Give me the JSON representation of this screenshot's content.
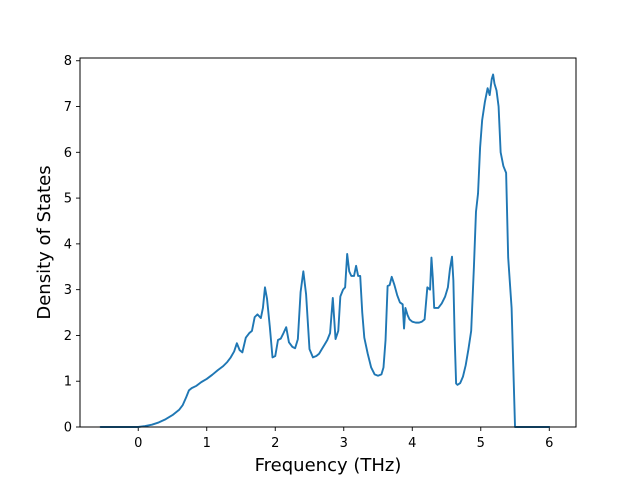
{
  "chart_data": {
    "type": "line",
    "title": "",
    "xlabel": "Frequency (THz)",
    "ylabel": "Density of States",
    "xlim": [
      -0.85,
      6.39
    ],
    "ylim": [
      0,
      8.06
    ],
    "grid": false,
    "legend": "none",
    "xticks": [
      0,
      1,
      2,
      3,
      4,
      5,
      6
    ],
    "yticks": [
      0,
      1,
      2,
      3,
      4,
      5,
      6,
      7,
      8
    ],
    "line_color": "#1f77b4",
    "series": [
      {
        "x": [
          -0.55,
          -0.4,
          -0.2,
          0.0,
          0.1,
          0.2,
          0.3,
          0.4,
          0.5,
          0.6,
          0.65,
          0.7,
          0.74,
          0.78,
          0.85,
          0.92,
          1.0,
          1.08,
          1.16,
          1.24,
          1.3,
          1.35,
          1.4,
          1.44,
          1.48,
          1.52,
          1.57,
          1.62,
          1.66,
          1.7,
          1.74,
          1.79,
          1.82,
          1.85,
          1.88,
          1.92,
          1.96,
          2.0,
          2.04,
          2.08,
          2.12,
          2.16,
          2.2,
          2.25,
          2.29,
          2.33,
          2.37,
          2.41,
          2.45,
          2.5,
          2.55,
          2.6,
          2.64,
          2.68,
          2.72,
          2.76,
          2.8,
          2.84,
          2.88,
          2.92,
          2.95,
          2.99,
          3.02,
          3.05,
          3.08,
          3.11,
          3.15,
          3.18,
          3.21,
          3.24,
          3.27,
          3.3,
          3.35,
          3.4,
          3.45,
          3.5,
          3.55,
          3.58,
          3.61,
          3.64,
          3.67,
          3.7,
          3.74,
          3.78,
          3.82,
          3.86,
          3.88,
          3.9,
          3.93,
          3.96,
          4.0,
          4.05,
          4.1,
          4.14,
          4.18,
          4.22,
          4.26,
          4.28,
          4.3,
          4.32,
          4.35,
          4.38,
          4.43,
          4.48,
          4.52,
          4.55,
          4.58,
          4.6,
          4.62,
          4.64,
          4.66,
          4.7,
          4.74,
          4.78,
          4.82,
          4.86,
          4.9,
          4.93,
          4.96,
          4.99,
          5.02,
          5.06,
          5.1,
          5.13,
          5.16,
          5.18,
          5.2,
          5.23,
          5.26,
          5.29,
          5.33,
          5.37,
          5.4,
          5.45,
          5.5,
          5.52,
          5.6,
          5.8,
          6.0
        ],
        "y": [
          0.0,
          0.0,
          0.0,
          0.0,
          0.02,
          0.05,
          0.1,
          0.17,
          0.26,
          0.38,
          0.48,
          0.65,
          0.8,
          0.85,
          0.9,
          0.98,
          1.05,
          1.14,
          1.24,
          1.33,
          1.42,
          1.52,
          1.65,
          1.83,
          1.68,
          1.63,
          1.95,
          2.05,
          2.1,
          2.4,
          2.46,
          2.38,
          2.6,
          3.05,
          2.8,
          2.2,
          1.52,
          1.55,
          1.9,
          1.93,
          2.05,
          2.18,
          1.85,
          1.75,
          1.72,
          1.92,
          2.95,
          3.4,
          2.9,
          1.7,
          1.52,
          1.55,
          1.6,
          1.7,
          1.8,
          1.9,
          2.05,
          2.82,
          1.92,
          2.1,
          2.85,
          3.0,
          3.05,
          3.78,
          3.4,
          3.3,
          3.3,
          3.52,
          3.3,
          3.3,
          2.5,
          1.95,
          1.6,
          1.3,
          1.15,
          1.12,
          1.15,
          1.3,
          1.9,
          3.08,
          3.1,
          3.28,
          3.1,
          2.88,
          2.72,
          2.68,
          2.15,
          2.6,
          2.45,
          2.35,
          2.3,
          2.28,
          2.28,
          2.3,
          2.35,
          3.05,
          3.0,
          3.7,
          3.25,
          2.6,
          2.6,
          2.6,
          2.7,
          2.85,
          3.05,
          3.45,
          3.72,
          3.2,
          1.9,
          0.95,
          0.92,
          0.96,
          1.1,
          1.35,
          1.7,
          2.1,
          3.5,
          4.7,
          5.1,
          6.1,
          6.7,
          7.1,
          7.4,
          7.25,
          7.6,
          7.7,
          7.5,
          7.35,
          7.0,
          6.0,
          5.7,
          5.55,
          3.7,
          2.6,
          0.0,
          0.0,
          0.0,
          0.0,
          0.0
        ]
      }
    ]
  }
}
